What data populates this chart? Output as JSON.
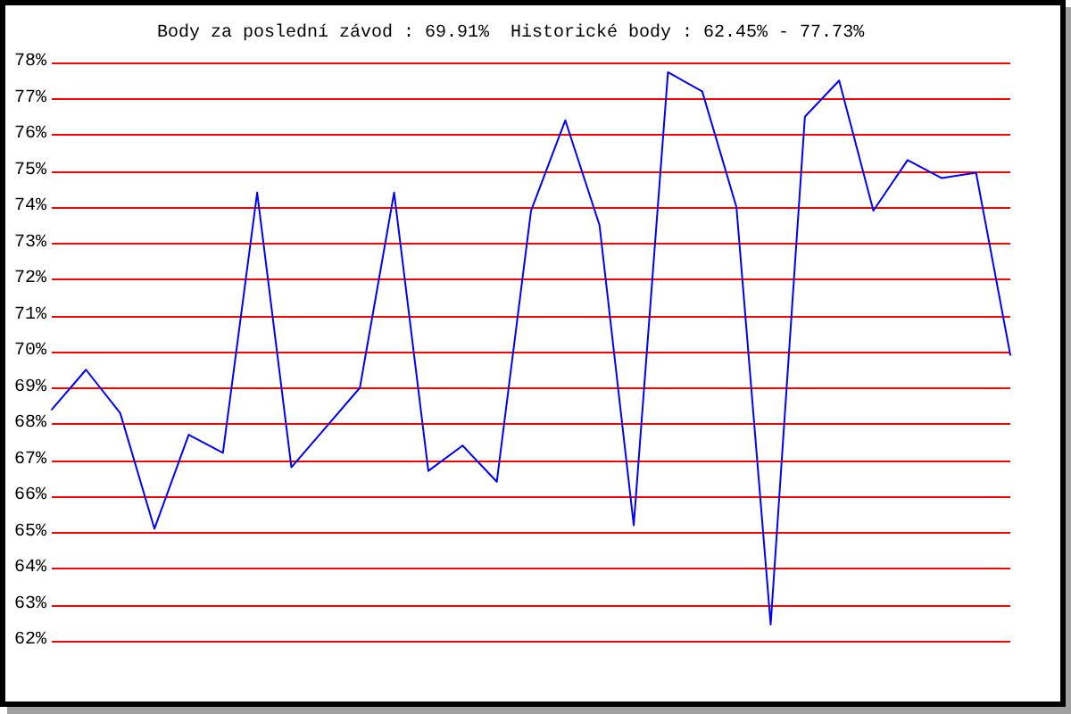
{
  "chart_data": {
    "type": "line",
    "title": "Body za poslední závod : 69.91%  Historické body : 62.45% - 77.73%",
    "categories": [
      null,
      null,
      null,
      null,
      null,
      null,
      null,
      null,
      null,
      null,
      null,
      null,
      null,
      null,
      null,
      null,
      null,
      null,
      null,
      null,
      null,
      null,
      null,
      null,
      null,
      null,
      null,
      null,
      null
    ],
    "values": [
      68.4,
      69.5,
      68.3,
      65.1,
      67.7,
      67.2,
      74.4,
      66.8,
      67.9,
      69,
      74.4,
      66.7,
      67.4,
      66.4,
      73.9,
      76.4,
      73.5,
      65.2,
      77.73,
      77.2,
      74,
      62.45,
      76.5,
      77.5,
      73.9,
      75.3,
      74.8,
      74.95,
      69.91
    ],
    "color": "#0000ff",
    "ylim": [
      62,
      78
    ],
    "yticks": [
      {
        "value": 62,
        "label": "62%"
      },
      {
        "value": 63,
        "label": "63%"
      },
      {
        "value": 64,
        "label": "64%"
      },
      {
        "value": 65,
        "label": "65%"
      },
      {
        "value": 66,
        "label": "66%"
      },
      {
        "value": 67,
        "label": "67%"
      },
      {
        "value": 68,
        "label": "68%"
      },
      {
        "value": 69,
        "label": "69%"
      },
      {
        "value": 70,
        "label": "70%"
      },
      {
        "value": 71,
        "label": "71%"
      },
      {
        "value": 72,
        "label": "72%"
      },
      {
        "value": 73,
        "label": "73%"
      },
      {
        "value": 74,
        "label": "74%"
      },
      {
        "value": 75,
        "label": "75%"
      },
      {
        "value": 76,
        "label": "76%"
      },
      {
        "value": 77,
        "label": "77%"
      },
      {
        "value": 78,
        "label": "78%"
      }
    ],
    "grid": "y",
    "tick_labels": "y",
    "marker": "none",
    "line_style": "solid"
  }
}
